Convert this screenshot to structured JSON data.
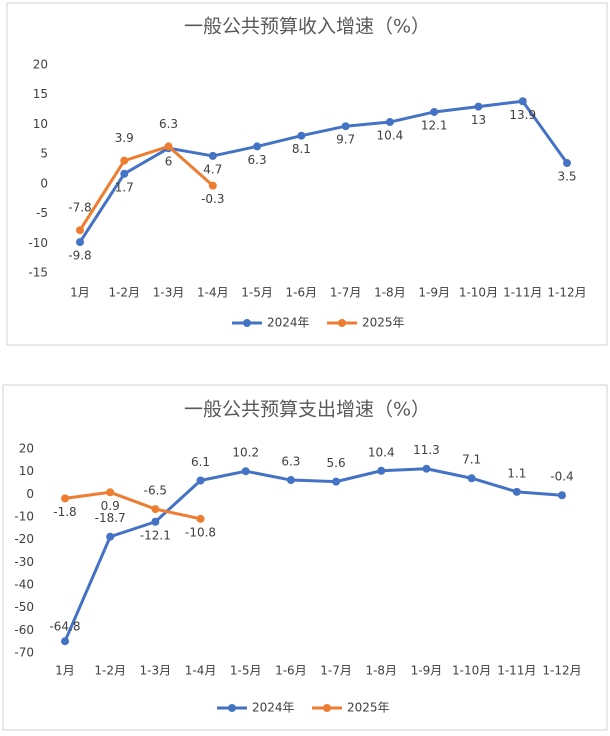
{
  "chart_data": [
    {
      "type": "line",
      "title": "一般公共预算收入增速（%）",
      "categories": [
        "1月",
        "1-2月",
        "1-3月",
        "1-4月",
        "1-5月",
        "1-6月",
        "1-7月",
        "1-8月",
        "1-9月",
        "1-10月",
        "1-11月",
        "1-12月"
      ],
      "series": [
        {
          "name": "2024年",
          "color": "#4472c4",
          "values": [
            -9.8,
            1.7,
            6,
            4.7,
            6.3,
            8.1,
            9.7,
            10.4,
            12.1,
            13,
            13.9,
            3.5
          ]
        },
        {
          "name": "2025年",
          "color": "#ed7d31",
          "values": [
            -7.8,
            3.9,
            6.3,
            -0.3,
            null,
            null,
            null,
            null,
            null,
            null,
            null,
            null
          ]
        }
      ],
      "ylim": [
        -15,
        20
      ],
      "yticks": [
        -15,
        -10,
        -5,
        0,
        5,
        10,
        15,
        20
      ],
      "grid": false,
      "legend": "bottom"
    },
    {
      "type": "line",
      "title": "一般公共预算支出增速（%）",
      "categories": [
        "1月",
        "1-2月",
        "1-3月",
        "1-4月",
        "1-5月",
        "1-6月",
        "1-7月",
        "1-8月",
        "1-9月",
        "1-10月",
        "1-11月",
        "1-12月"
      ],
      "series": [
        {
          "name": "2024年",
          "color": "#4472c4",
          "values": [
            -64.8,
            -18.7,
            -12.1,
            6.1,
            10.2,
            6.3,
            5.6,
            10.4,
            11.3,
            7.1,
            1.1,
            -0.4
          ]
        },
        {
          "name": "2025年",
          "color": "#ed7d31",
          "values": [
            -1.8,
            0.9,
            -6.5,
            -10.8,
            null,
            null,
            null,
            null,
            null,
            null,
            null,
            null
          ]
        }
      ],
      "ylim": [
        -70,
        20
      ],
      "yticks": [
        -70,
        -60,
        -50,
        -40,
        -30,
        -20,
        -10,
        0,
        10,
        20
      ],
      "grid": false,
      "legend": "bottom"
    }
  ]
}
